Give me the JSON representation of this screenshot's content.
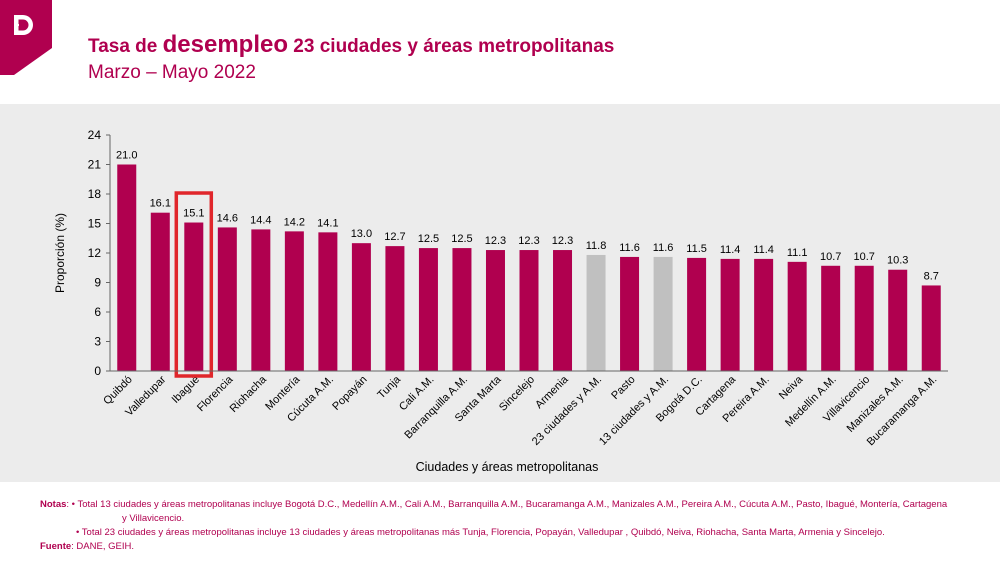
{
  "header": {
    "title_pre": "Tasa de ",
    "title_big": "desempleo",
    "title_post": " 23 ciudades y áreas metropolitanas",
    "subtitle": "Marzo – Mayo 2022",
    "logo_icon": "dane-logo-icon"
  },
  "colors": {
    "brand": "#b0004f",
    "bar": "#b0004f",
    "bar_aggregate": "#c0c0c0",
    "highlight": "#e0262b",
    "panel_bg": "#ececec"
  },
  "chart_data": {
    "type": "bar",
    "title": "",
    "xlabel": "Ciudades y áreas metropolitanas",
    "ylabel": "Proporción (%)",
    "ylim": [
      0,
      24
    ],
    "yticks": [
      0,
      3,
      6,
      9,
      12,
      15,
      18,
      21,
      24
    ],
    "grid": false,
    "categories": [
      "Quibdó",
      "Valledupar",
      "Ibagué",
      "Florencia",
      "Riohacha",
      "Montería",
      "Cúcuta A.M.",
      "Popayán",
      "Tunja",
      "Cali A.M.",
      "Barranquilla A.M.",
      "Santa Marta",
      "Sincelejo",
      "Armenia",
      "23 ciudades y A.M.",
      "Pasto",
      "13 ciudades y A.M.",
      "Bogotá D.C.",
      "Cartagena",
      "Pereira A.M.",
      "Neiva",
      "Medellín A.M.",
      "Villavicencio",
      "Manizales A.M.",
      "Bucaramanga A.M."
    ],
    "values": [
      21.0,
      16.1,
      15.1,
      14.6,
      14.4,
      14.2,
      14.1,
      13.0,
      12.7,
      12.5,
      12.5,
      12.3,
      12.3,
      12.3,
      11.8,
      11.6,
      11.6,
      11.5,
      11.4,
      11.4,
      11.1,
      10.7,
      10.7,
      10.3,
      8.7
    ],
    "value_labels": [
      "21.0",
      "16.1",
      "15.1",
      "14.6",
      "14.4",
      "14.2",
      "14.1",
      "13.0",
      "12.7",
      "12.5",
      "12.5",
      "12.3",
      "12.3",
      "12.3",
      "11.8",
      "11.6",
      "11.6",
      "11.5",
      "11.4",
      "11.4",
      "11.1",
      "10.7",
      "10.7",
      "10.3",
      "8.7"
    ],
    "aggregate_categories": [
      "23 ciudades y A.M.",
      "13 ciudades y A.M."
    ],
    "highlighted_category": "Ibagué"
  },
  "notes": {
    "label": "Notas",
    "bullet1_line1": ": • Total 13 ciudades y áreas metropolitanas incluye Bogotá D.C., Medellín A.M., Cali A.M., Barranquilla A.M., Bucaramanga A.M., Manizales A.M., Pereira A.M., Cúcuta A.M., Pasto, Ibagué, Montería, Cartagena",
    "bullet1_line2": "y Villavicencio.",
    "bullet2": "• Total 23 ciudades y áreas metropolitanas incluye 13 ciudades y áreas metropolitanas más Tunja, Florencia, Popayán, Valledupar , Quibdó, Neiva, Riohacha, Santa Marta, Armenia y Sincelejo.",
    "source_label": "Fuente",
    "source_text": ": DANE, GEIH."
  }
}
